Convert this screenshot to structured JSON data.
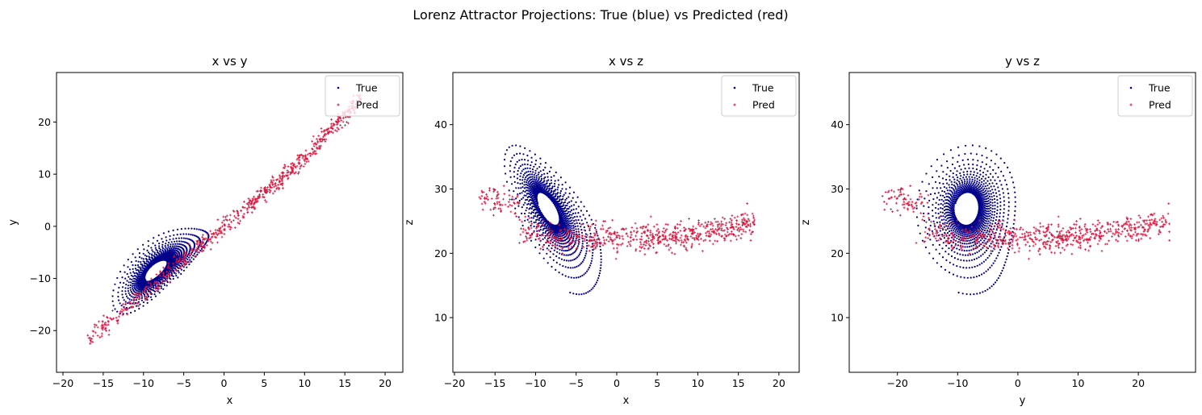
{
  "figure": {
    "suptitle": "Lorenz Attractor Projections: True (blue) vs Predicted (red)"
  },
  "chart_data": [
    {
      "type": "scatter",
      "title": "x vs y",
      "xlabel": "x",
      "ylabel": "y",
      "xlim": [
        -20.8,
        22.2
      ],
      "ylim": [
        -28.0,
        29.5
      ],
      "xticks": [
        -20,
        -15,
        -10,
        -5,
        0,
        5,
        10,
        15,
        20
      ],
      "yticks": [
        -20,
        -10,
        0,
        10,
        20
      ],
      "legend": {
        "position": "upper right",
        "entries": [
          "True",
          "Pred"
        ]
      },
      "x_var": "x",
      "y_var": "y",
      "series": [
        {
          "name": "True",
          "color": "#00008b",
          "marker": "dot"
        },
        {
          "name": "Pred",
          "color": "#dc143c",
          "marker": "plus"
        }
      ]
    },
    {
      "type": "scatter",
      "title": "x vs z",
      "xlabel": "x",
      "ylabel": "z",
      "xlim": [
        -20.2,
        22.5
      ],
      "ylim": [
        1.5,
        48.1
      ],
      "xticks": [
        -20,
        -15,
        -10,
        -5,
        0,
        5,
        10,
        15,
        20
      ],
      "yticks": [
        10,
        20,
        30,
        40
      ],
      "legend": {
        "position": "upper right",
        "entries": [
          "True",
          "Pred"
        ]
      },
      "x_var": "x",
      "y_var": "z",
      "series": [
        {
          "name": "True",
          "color": "#00008b",
          "marker": "dot"
        },
        {
          "name": "Pred",
          "color": "#dc143c",
          "marker": "plus"
        }
      ]
    },
    {
      "type": "scatter",
      "title": "y vs z",
      "xlabel": "y",
      "ylabel": "z",
      "xlim": [
        -28.0,
        29.5
      ],
      "ylim": [
        1.5,
        48.1
      ],
      "xticks": [
        -20,
        -10,
        0,
        10,
        20
      ],
      "yticks": [
        10,
        20,
        30,
        40
      ],
      "legend": {
        "position": "upper right",
        "entries": [
          "True",
          "Pred"
        ]
      },
      "x_var": "y",
      "y_var": "z",
      "series": [
        {
          "name": "True",
          "color": "#00008b",
          "marker": "dot"
        },
        {
          "name": "Pred",
          "color": "#dc143c",
          "marker": "plus"
        }
      ]
    }
  ]
}
